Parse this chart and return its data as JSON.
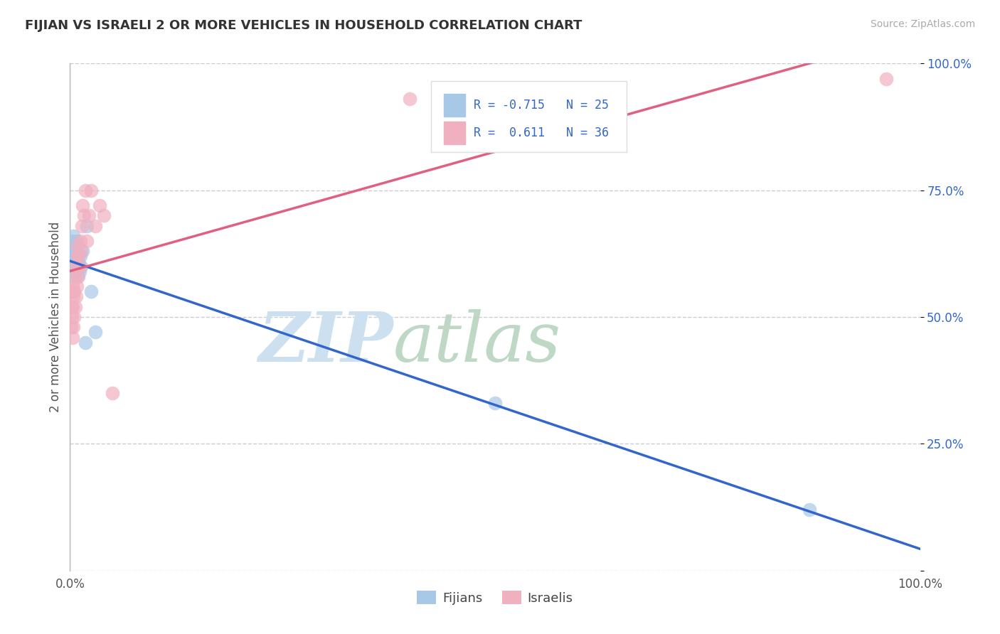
{
  "title": "FIJIAN VS ISRAELI 2 OR MORE VEHICLES IN HOUSEHOLD CORRELATION CHART",
  "source": "Source: ZipAtlas.com",
  "ylabel": "2 or more Vehicles in Household",
  "yticks": [
    0.0,
    0.25,
    0.5,
    0.75,
    1.0
  ],
  "ytick_labels": [
    "",
    "25.0%",
    "50.0%",
    "75.0%",
    "100.0%"
  ],
  "fijian_R": -0.715,
  "fijian_N": 25,
  "israeli_R": 0.611,
  "israeli_N": 36,
  "fijian_color": "#a8c8e8",
  "fijian_line_color": "#3366cc",
  "israeli_color": "#f0b0c0",
  "israeli_line_color": "#e06080",
  "fijian_x": [
    0.001,
    0.002,
    0.002,
    0.003,
    0.003,
    0.003,
    0.004,
    0.004,
    0.005,
    0.005,
    0.006,
    0.007,
    0.008,
    0.009,
    0.01,
    0.011,
    0.012,
    0.013,
    0.015,
    0.018,
    0.02,
    0.025,
    0.03,
    0.5,
    0.87
  ],
  "fijian_y": [
    0.62,
    0.6,
    0.65,
    0.63,
    0.61,
    0.64,
    0.58,
    0.66,
    0.6,
    0.62,
    0.64,
    0.63,
    0.65,
    0.58,
    0.61,
    0.59,
    0.62,
    0.6,
    0.63,
    0.45,
    0.68,
    0.55,
    0.47,
    0.33,
    0.12
  ],
  "israeli_x": [
    0.001,
    0.001,
    0.002,
    0.002,
    0.003,
    0.003,
    0.003,
    0.004,
    0.004,
    0.005,
    0.005,
    0.006,
    0.006,
    0.007,
    0.007,
    0.008,
    0.009,
    0.009,
    0.01,
    0.01,
    0.011,
    0.012,
    0.013,
    0.014,
    0.015,
    0.016,
    0.018,
    0.02,
    0.022,
    0.025,
    0.03,
    0.035,
    0.04,
    0.05,
    0.4,
    0.96
  ],
  "israeli_y": [
    0.48,
    0.52,
    0.5,
    0.55,
    0.46,
    0.52,
    0.56,
    0.48,
    0.54,
    0.5,
    0.55,
    0.52,
    0.58,
    0.54,
    0.6,
    0.56,
    0.62,
    0.64,
    0.58,
    0.62,
    0.6,
    0.65,
    0.63,
    0.68,
    0.72,
    0.7,
    0.75,
    0.65,
    0.7,
    0.75,
    0.68,
    0.72,
    0.7,
    0.35,
    0.93,
    0.97
  ],
  "background_color": "#ffffff",
  "title_fontsize": 13,
  "axis_color": "#555555",
  "grid_color": "#cccccc",
  "legend_R_color": "#3366cc"
}
